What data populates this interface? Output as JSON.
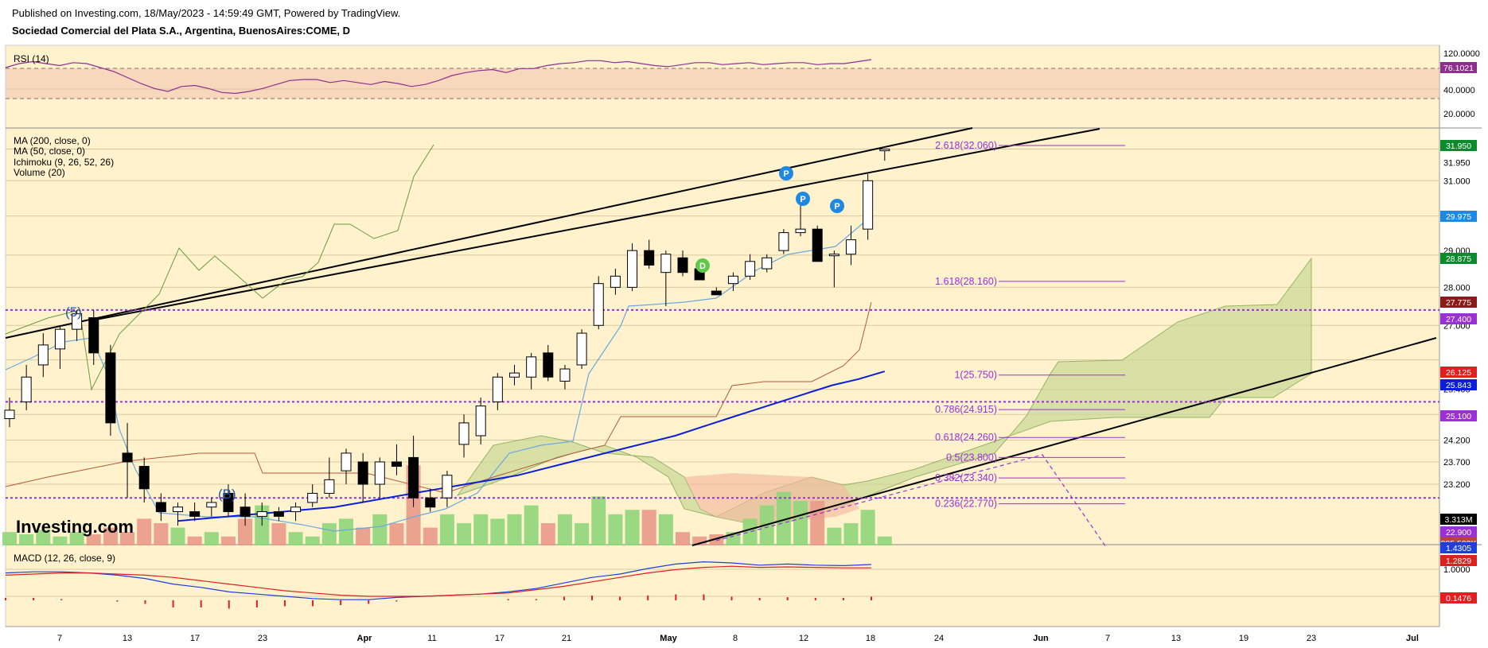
{
  "header": {
    "published": "Published on Investing.com, 18/May/2023 - 14:59:49 GMT, Powered by TradingView.",
    "symbol": "Sociedad Comercial del Plata S.A., Argentina, BuenosAires:COME, D"
  },
  "watermark": "Investing.com",
  "colors": {
    "background": "#fff2cc",
    "bull_candle": "#ffffff",
    "bear_candle": "#000000",
    "ma50": "#0a1fd6",
    "ma200": "#6aa8e0",
    "fib": "#9b30d9",
    "dotted_level": "#9b30d9",
    "rsi_line": "#8e2f8e",
    "macd_line": "#1c3fe0",
    "signal_line": "#e02020",
    "volume_up": "#8fd67a",
    "volume_down": "#e99a8a",
    "marker_p": "#1e88e5",
    "marker_d": "#5cc94a"
  },
  "x_axis": {
    "labels": [
      "7",
      "13",
      "17",
      "23",
      "Apr",
      "11",
      "17",
      "21",
      "May",
      "8",
      "12",
      "18",
      "24",
      "Jun",
      "7",
      "13",
      "19",
      "23",
      "Jul"
    ],
    "label_bold": [
      "Apr",
      "May",
      "Jun",
      "Jul"
    ]
  },
  "rsi_panel": {
    "legend": "RSI (14)",
    "ticks": [
      "120.0000",
      "40.0000",
      "20.0000"
    ],
    "value_badge": "76.1021",
    "series": [
      68,
      72,
      74,
      72,
      70,
      73,
      72,
      68,
      64,
      58,
      52,
      47,
      44,
      49,
      50,
      47,
      43,
      42,
      44,
      47,
      51,
      55,
      56,
      56,
      53,
      55,
      53,
      51,
      54,
      52,
      49,
      51,
      55,
      60,
      63,
      65,
      66,
      63,
      67,
      67,
      70,
      72,
      73,
      75,
      75,
      73,
      74,
      72,
      70,
      69,
      71,
      73,
      73,
      71,
      72,
      73,
      71,
      72,
      73,
      73,
      71,
      72,
      72,
      74,
      76
    ]
  },
  "price_panel": {
    "legend": [
      "MA (200, close, 0)",
      "MA (50, close, 0)",
      "Ichimoku (9, 26, 52, 26)",
      "Volume (20)"
    ],
    "ticks": [
      "31.950",
      "31.000",
      "29.000",
      "28.000",
      "27.000",
      "25.400",
      "24.800",
      "24.200",
      "23.700",
      "23.200",
      "22.900"
    ],
    "badges": [
      {
        "label": "31.950",
        "color": "#0b8a2e"
      },
      {
        "label": "29.975",
        "color": "#1e88e5"
      },
      {
        "label": "28.875",
        "color": "#0b8a2e"
      },
      {
        "label": "27.775",
        "color": "#8b1a1a"
      },
      {
        "label": "27.400",
        "color": "#9b30d9"
      },
      {
        "label": "26.125",
        "color": "#e02020"
      },
      {
        "label": "25.843",
        "color": "#0a1fd6"
      },
      {
        "label": "25.100",
        "color": "#9b30d9"
      },
      {
        "label": "3.313M",
        "color": "#000000"
      },
      {
        "label": "22.900",
        "color": "#9b30d9"
      },
      {
        "label": "885.503K",
        "color": "#c04040"
      }
    ],
    "fib_levels": [
      "2.618(32.060)",
      "1.618(28.160)",
      "1(25.750)",
      "0.786(24.915)",
      "0.618(24.260)",
      "0.5(23.800)",
      "0.382(23.340)",
      "0.236(22.770)"
    ],
    "wave_labels": [
      "(5)",
      "(B)"
    ],
    "markers": [
      "P",
      "P",
      "P",
      "D"
    ]
  },
  "macd_panel": {
    "legend": "MACD (12, 26, close, 9)",
    "ticks": [
      "1.0000"
    ],
    "badges": [
      {
        "label": "1.4305",
        "color": "#1c3fe0"
      },
      {
        "label": "1.2829",
        "color": "#e02020"
      },
      {
        "label": "0.1476",
        "color": "#e02020"
      }
    ]
  },
  "chart_data": {
    "type": "candlestick",
    "title": "Sociedad Comercial del Plata S.A., Argentina, BuenosAires:COME, D",
    "y_scale": "log",
    "candles": [
      {
        "o": 24.7,
        "h": 25.2,
        "l": 24.5,
        "c": 24.9
      },
      {
        "o": 25.1,
        "h": 26.0,
        "l": 24.9,
        "c": 25.7
      },
      {
        "o": 26.0,
        "h": 26.8,
        "l": 25.7,
        "c": 26.5
      },
      {
        "o": 26.4,
        "h": 27.0,
        "l": 25.9,
        "c": 26.9
      },
      {
        "o": 26.9,
        "h": 27.4,
        "l": 26.6,
        "c": 27.3
      },
      {
        "o": 27.2,
        "h": 27.4,
        "l": 26.0,
        "c": 26.3
      },
      {
        "o": 26.3,
        "h": 26.5,
        "l": 24.3,
        "c": 24.6
      },
      {
        "o": 23.9,
        "h": 24.6,
        "l": 22.9,
        "c": 23.7
      },
      {
        "o": 23.6,
        "h": 23.8,
        "l": 22.8,
        "c": 23.1
      },
      {
        "o": 22.8,
        "h": 23.0,
        "l": 22.4,
        "c": 22.6
      },
      {
        "o": 22.6,
        "h": 22.8,
        "l": 22.3,
        "c": 22.7
      },
      {
        "o": 22.6,
        "h": 22.8,
        "l": 22.4,
        "c": 22.5
      },
      {
        "o": 22.7,
        "h": 22.9,
        "l": 22.5,
        "c": 22.8
      },
      {
        "o": 23.0,
        "h": 23.2,
        "l": 22.5,
        "c": 22.6
      },
      {
        "o": 22.7,
        "h": 23.0,
        "l": 22.3,
        "c": 22.5
      },
      {
        "o": 22.5,
        "h": 22.8,
        "l": 22.3,
        "c": 22.6
      },
      {
        "o": 22.6,
        "h": 22.7,
        "l": 22.4,
        "c": 22.5
      },
      {
        "o": 22.6,
        "h": 22.8,
        "l": 22.4,
        "c": 22.7
      },
      {
        "o": 22.8,
        "h": 23.2,
        "l": 22.7,
        "c": 23.0
      },
      {
        "o": 23.0,
        "h": 23.8,
        "l": 22.9,
        "c": 23.3
      },
      {
        "o": 23.5,
        "h": 24.0,
        "l": 23.2,
        "c": 23.9
      },
      {
        "o": 23.7,
        "h": 23.9,
        "l": 22.8,
        "c": 23.2
      },
      {
        "o": 23.2,
        "h": 23.8,
        "l": 22.9,
        "c": 23.7
      },
      {
        "o": 23.7,
        "h": 24.1,
        "l": 23.4,
        "c": 23.6
      },
      {
        "o": 23.8,
        "h": 24.3,
        "l": 22.7,
        "c": 22.9
      },
      {
        "o": 22.9,
        "h": 23.1,
        "l": 22.6,
        "c": 22.7
      },
      {
        "o": 22.9,
        "h": 23.5,
        "l": 22.7,
        "c": 23.4
      },
      {
        "o": 24.1,
        "h": 24.8,
        "l": 23.8,
        "c": 24.6
      },
      {
        "o": 24.3,
        "h": 25.2,
        "l": 24.1,
        "c": 25.0
      },
      {
        "o": 25.1,
        "h": 25.8,
        "l": 24.9,
        "c": 25.7
      },
      {
        "o": 25.7,
        "h": 26.0,
        "l": 25.5,
        "c": 25.8
      },
      {
        "o": 25.7,
        "h": 26.3,
        "l": 25.4,
        "c": 26.2
      },
      {
        "o": 26.3,
        "h": 26.5,
        "l": 25.6,
        "c": 25.7
      },
      {
        "o": 25.6,
        "h": 26.0,
        "l": 25.4,
        "c": 25.9
      },
      {
        "o": 26.0,
        "h": 26.9,
        "l": 25.9,
        "c": 26.8
      },
      {
        "o": 27.0,
        "h": 28.3,
        "l": 26.9,
        "c": 28.1
      },
      {
        "o": 28.0,
        "h": 28.5,
        "l": 27.8,
        "c": 28.3
      },
      {
        "o": 28.0,
        "h": 29.2,
        "l": 27.9,
        "c": 29.0
      },
      {
        "o": 29.0,
        "h": 29.3,
        "l": 28.5,
        "c": 28.6
      },
      {
        "o": 28.4,
        "h": 29.0,
        "l": 27.5,
        "c": 28.9
      },
      {
        "o": 28.8,
        "h": 29.0,
        "l": 28.3,
        "c": 28.4
      },
      {
        "o": 28.5,
        "h": 28.7,
        "l": 28.2,
        "c": 28.2
      },
      {
        "o": 27.9,
        "h": 28.0,
        "l": 27.8,
        "c": 27.8
      },
      {
        "o": 28.1,
        "h": 28.4,
        "l": 27.9,
        "c": 28.3
      },
      {
        "o": 28.3,
        "h": 28.9,
        "l": 28.2,
        "c": 28.7
      },
      {
        "o": 28.5,
        "h": 28.9,
        "l": 28.4,
        "c": 28.8
      },
      {
        "o": 29.0,
        "h": 29.6,
        "l": 28.9,
        "c": 29.5
      },
      {
        "o": 29.5,
        "h": 30.4,
        "l": 29.4,
        "c": 29.6
      },
      {
        "o": 29.6,
        "h": 29.7,
        "l": 28.7,
        "c": 28.7
      },
      {
        "o": 28.9,
        "h": 29.0,
        "l": 28.0,
        "c": 28.9
      },
      {
        "o": 28.9,
        "h": 29.7,
        "l": 28.6,
        "c": 29.3
      },
      {
        "o": 29.6,
        "h": 31.2,
        "l": 29.3,
        "c": 31.0
      },
      {
        "o": 31.9,
        "h": 31.95,
        "l": 31.6,
        "c": 31.95
      }
    ],
    "ma50": [
      22.4,
      22.45,
      22.5,
      22.55,
      22.6,
      22.65,
      22.7,
      22.8,
      22.9,
      23.0,
      23.1,
      23.2,
      23.3,
      23.4,
      23.55,
      23.7,
      23.85,
      24.0,
      24.15,
      24.3,
      24.5,
      24.7,
      24.9,
      25.1,
      25.3,
      25.5,
      25.65,
      25.84
    ],
    "fib_values": [
      32.06,
      28.16,
      25.75,
      24.915,
      24.26,
      23.8,
      23.34,
      22.77
    ],
    "levels_dotted": [
      27.4,
      25.1,
      22.9
    ],
    "macd": {
      "macd": [
        1.05,
        1.1,
        1.1,
        1.05,
        0.95,
        0.8,
        0.55,
        0.4,
        0.2,
        0.1,
        0.0,
        -0.1,
        -0.15,
        -0.15,
        -0.05,
        0.0,
        0.05,
        0.1,
        0.2,
        0.35,
        0.6,
        0.85,
        1.0,
        1.25,
        1.45,
        1.55,
        1.5,
        1.4,
        1.45,
        1.4,
        1.38,
        1.43
      ],
      "signal": [
        0.95,
        1.0,
        1.05,
        1.05,
        1.0,
        0.95,
        0.85,
        0.7,
        0.55,
        0.4,
        0.25,
        0.15,
        0.05,
        0.0,
        0.0,
        0.0,
        0.05,
        0.1,
        0.15,
        0.3,
        0.45,
        0.65,
        0.85,
        1.05,
        1.2,
        1.3,
        1.35,
        1.3,
        1.32,
        1.3,
        1.28,
        1.28
      ],
      "hist": [
        0.1,
        0.1,
        0.05,
        0.0,
        -0.05,
        -0.15,
        -0.3,
        -0.3,
        -0.35,
        -0.3,
        -0.25,
        -0.25,
        -0.2,
        -0.15,
        -0.05,
        0.0,
        0.0,
        0.0,
        0.05,
        0.05,
        0.15,
        0.2,
        0.15,
        0.2,
        0.25,
        0.25,
        0.15,
        0.1,
        0.13,
        0.1,
        0.1,
        0.15
      ]
    }
  }
}
